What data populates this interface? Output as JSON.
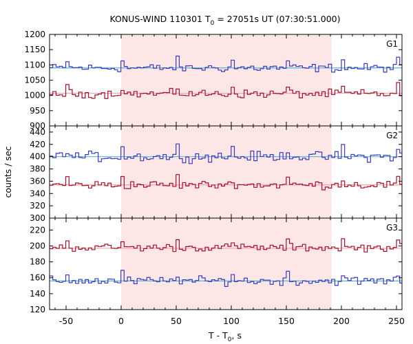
{
  "chart_data": {
    "type": "line",
    "title_main": "KONUS-WIND 110301 T",
    "title_sub": "0",
    "title_rest": " = 27051s UT (07:30:51.000)",
    "xlabel_main": "T - T",
    "xlabel_sub": "0",
    "xlabel_rest": ", s",
    "ylabel": "counts / sec",
    "xlim": [
      -65,
      255
    ],
    "x_ticks": [
      -50,
      0,
      50,
      100,
      150,
      200,
      250
    ],
    "x_tick_labels": [
      "-50",
      "0",
      "50",
      "100",
      "150",
      "200",
      "250"
    ],
    "shaded_interval": [
      0,
      191
    ],
    "shade_color": "#fde6e6",
    "blue_color": "#3a3ab8",
    "red_color": "#a01028",
    "bg_blue_color": "#4fb8d8",
    "bg_red_color": "#f0a0b0",
    "panels": [
      {
        "label": "G1",
        "ylim": [
          900,
          1200
        ],
        "y_ticks": [
          900,
          950,
          1000,
          1050,
          1100,
          1150,
          1200
        ],
        "y_tick_labels": [
          "900",
          "950",
          "1000",
          "1050",
          "1100",
          "1150",
          "1200"
        ],
        "blue_bg": 1090,
        "red_bg": 1007,
        "blue_base": 1090,
        "blue_amp": 20,
        "red_base": 1005,
        "red_amp": 20
      },
      {
        "label": "G2",
        "ylim": [
          300,
          450
        ],
        "y_ticks": [
          300,
          320,
          340,
          360,
          380,
          400,
          420,
          440
        ],
        "y_tick_labels": [
          "300",
          "320",
          "340",
          "360",
          "380",
          "400",
          "420",
          "440"
        ],
        "blue_bg": 400,
        "red_bg": 354,
        "blue_base": 400,
        "blue_amp": 12,
        "red_base": 354,
        "red_amp": 10
      },
      {
        "label": "G3",
        "ylim": [
          120,
          235
        ],
        "y_ticks": [
          120,
          140,
          160,
          180,
          200,
          220
        ],
        "y_tick_labels": [
          "120",
          "140",
          "160",
          "180",
          "200",
          "220"
        ],
        "blue_bg": 156,
        "red_bg": 197,
        "blue_base": 156,
        "blue_amp": 8,
        "red_base": 198,
        "red_amp": 7
      }
    ]
  }
}
